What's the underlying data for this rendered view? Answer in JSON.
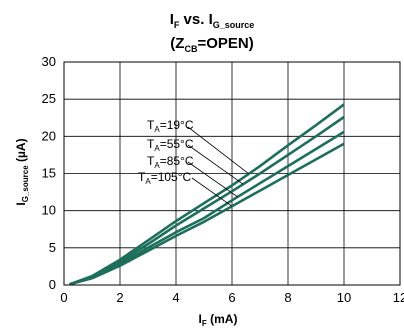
{
  "chart_data": {
    "type": "line",
    "title": {
      "line1": {
        "main": "I",
        "sub1": "F",
        "mid": " vs. I",
        "sub2": "G_source"
      },
      "line2": {
        "open": "(Z",
        "sub": "CB",
        "close": "=OPEN)"
      }
    },
    "xlabel": {
      "main": "I",
      "sub": "F",
      "unit": " (mA)"
    },
    "ylabel": {
      "main": "I",
      "sub": "G_source",
      "unit": " (µA)"
    },
    "xlim": [
      0,
      12
    ],
    "ylim": [
      0,
      30
    ],
    "x_ticks": [
      0,
      2,
      4,
      6,
      8,
      10,
      12
    ],
    "y_ticks": [
      0,
      5,
      10,
      15,
      20,
      25,
      30
    ],
    "grid": true,
    "line_color": "#1e6e5c",
    "series": [
      {
        "name": {
          "T": "T",
          "sub": "A",
          "val": "=19°C"
        },
        "x": [
          0.2,
          1,
          2,
          3,
          4,
          5,
          6,
          7,
          8,
          9,
          10
        ],
        "y": [
          0.1,
          1.2,
          3.4,
          6.0,
          8.6,
          11.0,
          13.4,
          16.0,
          18.8,
          21.5,
          24.3
        ]
      },
      {
        "name": {
          "T": "T",
          "sub": "A",
          "val": "=55°C"
        },
        "x": [
          0.2,
          1,
          2,
          3,
          4,
          5,
          6,
          7,
          8,
          9,
          10
        ],
        "y": [
          0.1,
          1.1,
          3.1,
          5.5,
          8.0,
          10.3,
          12.6,
          15.0,
          17.5,
          20.0,
          22.6
        ]
      },
      {
        "name": {
          "T": "T",
          "sub": "A",
          "val": "=85°C"
        },
        "x": [
          0.2,
          1,
          2,
          3,
          4,
          5,
          6,
          7,
          8,
          9,
          10
        ],
        "y": [
          0.1,
          1.0,
          2.8,
          5.0,
          7.1,
          9.0,
          11.4,
          13.7,
          16.0,
          18.3,
          20.6
        ]
      },
      {
        "name": {
          "T": "T",
          "sub": "A",
          "val": "=105°C"
        },
        "x": [
          0.2,
          1,
          2,
          3,
          4,
          5,
          6,
          7,
          8,
          9,
          10
        ],
        "y": [
          0.1,
          0.9,
          2.6,
          4.6,
          6.6,
          8.5,
          10.6,
          12.7,
          14.8,
          16.9,
          19.0
        ]
      }
    ]
  }
}
